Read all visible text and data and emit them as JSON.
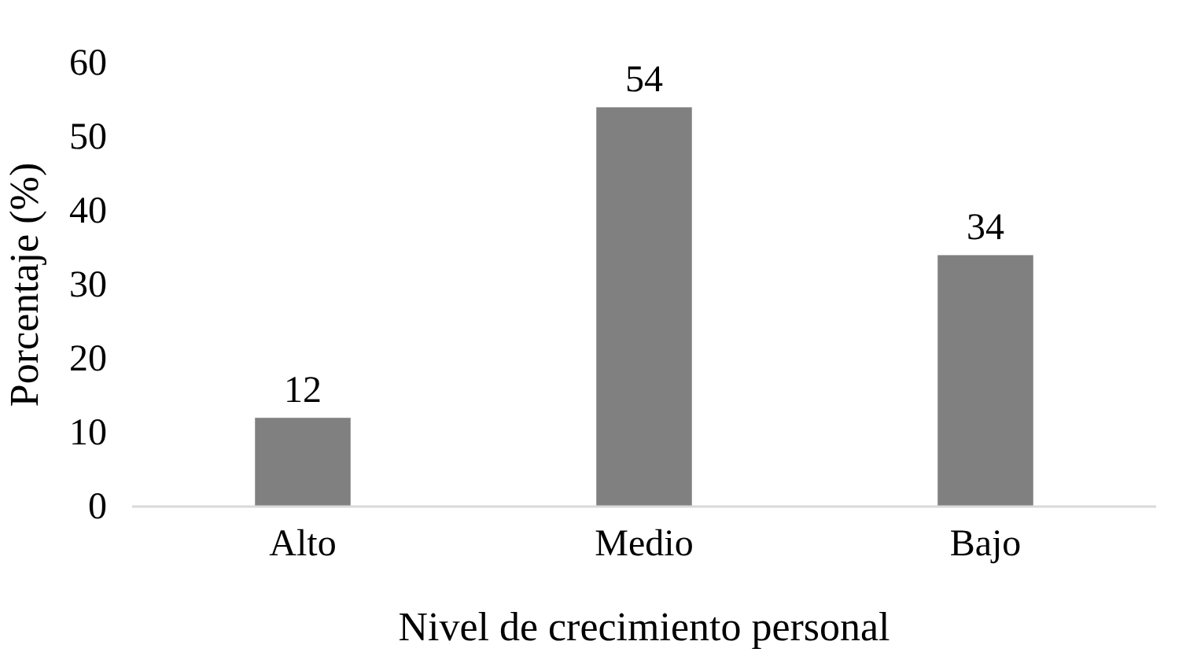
{
  "chart_data": {
    "type": "bar",
    "xlabel": "Nivel de crecimiento personal",
    "ylabel": "Porcentaje (%)",
    "categories": [
      "Alto",
      "Medio",
      "Bajo"
    ],
    "values": [
      12,
      54,
      34
    ],
    "color": "#808080",
    "ylim": [
      0,
      60
    ],
    "yticks": [
      0,
      10,
      20,
      30,
      40,
      50,
      60
    ],
    "grid": false,
    "data_labels": true
  }
}
